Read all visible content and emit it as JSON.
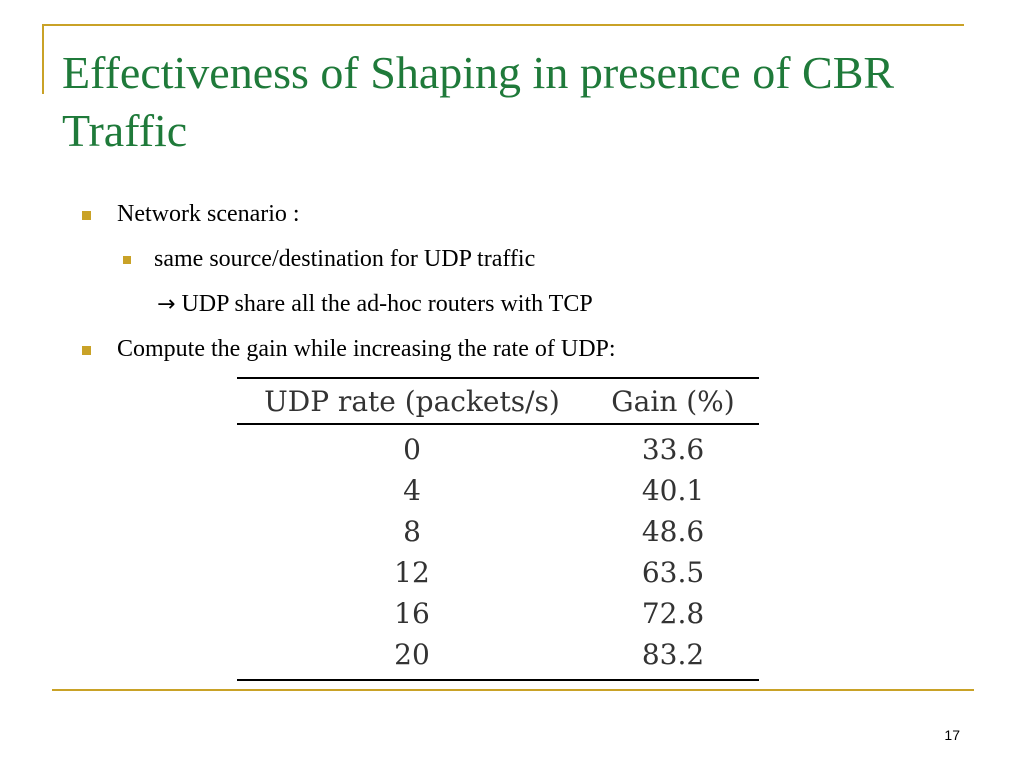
{
  "slide": {
    "title": "Effectiveness of Shaping in presence of CBR Traffic",
    "bullets": [
      {
        "level": 1,
        "text": "Network scenario :"
      },
      {
        "level": 2,
        "text": "same source/destination for UDP traffic"
      },
      {
        "level": 3,
        "arrow": "→",
        "text": "UDP share all the ad-hoc routers with TCP"
      },
      {
        "level": 1,
        "text": "Compute the gain while increasing the rate of UDP:"
      }
    ],
    "table": {
      "headers": [
        "UDP rate (packets/s)",
        "Gain (%)"
      ],
      "rows": [
        [
          "0",
          "33.6"
        ],
        [
          "4",
          "40.1"
        ],
        [
          "8",
          "48.6"
        ],
        [
          "12",
          "63.5"
        ],
        [
          "16",
          "72.8"
        ],
        [
          "20",
          "83.2"
        ]
      ]
    },
    "page_number": "17"
  },
  "colors": {
    "title": "#1f7a3a",
    "accent": "#c9a227"
  }
}
